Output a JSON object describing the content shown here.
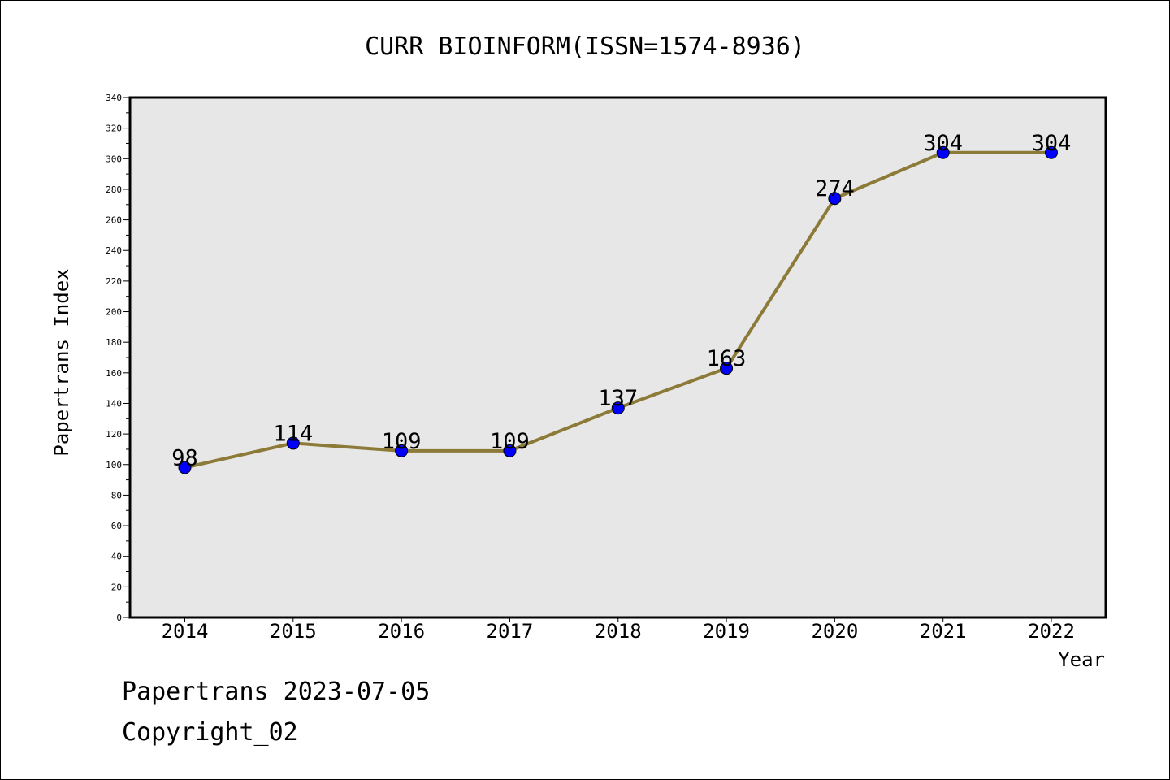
{
  "chart_data": {
    "type": "line",
    "title": "CURR BIOINFORM(ISSN=1574-8936)",
    "xlabel": "Year",
    "ylabel": "Papertrans Index",
    "categories": [
      "2014",
      "2015",
      "2016",
      "2017",
      "2018",
      "2019",
      "2020",
      "2021",
      "2022"
    ],
    "values": [
      98,
      114,
      109,
      109,
      137,
      163,
      274,
      304,
      304
    ],
    "data_labels": [
      "98",
      "114",
      "109",
      "109",
      "137",
      "163",
      "274",
      "304",
      "304"
    ],
    "ylim": [
      0,
      340
    ],
    "yticks": [
      "0",
      "20",
      "40",
      "60",
      "80",
      "100",
      "120",
      "140",
      "160",
      "180",
      "200",
      "220",
      "240",
      "260",
      "280",
      "300",
      "320",
      "340"
    ],
    "grid": false,
    "legend": "none",
    "colors": {
      "line": "#8c7a38",
      "marker": "#0000ff",
      "plot_background": "#e7e7e7"
    }
  },
  "footer": {
    "line1": "Papertrans 2023-07-05",
    "line2": "Copyright_02"
  }
}
